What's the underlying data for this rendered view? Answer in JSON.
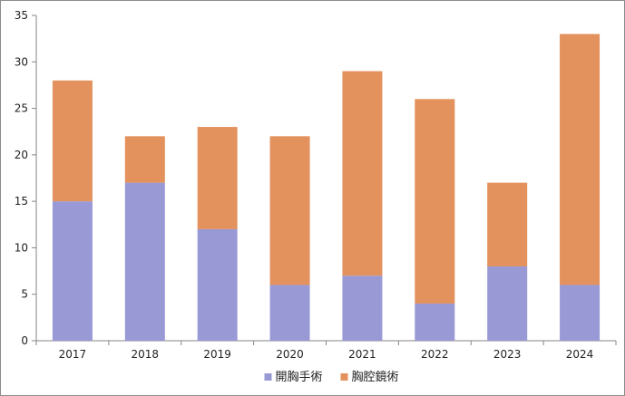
{
  "chart_data": {
    "type": "bar",
    "stacked": true,
    "title": "",
    "xlabel": "",
    "ylabel": "",
    "categories": [
      "2017",
      "2018",
      "2019",
      "2020",
      "2021",
      "2022",
      "2023",
      "2024"
    ],
    "series": [
      {
        "name": "開胸手術",
        "color": "#9999d6",
        "values": [
          15,
          17,
          12,
          6,
          7,
          4,
          8,
          6
        ]
      },
      {
        "name": "胸腔鏡術",
        "color": "#e3915d",
        "values": [
          13,
          5,
          11,
          16,
          22,
          22,
          9,
          27
        ]
      }
    ],
    "ylim": [
      0,
      35
    ],
    "yticks": [
      0,
      5,
      10,
      15,
      20,
      25,
      30,
      35
    ],
    "grid": false,
    "legend_position": "bottom"
  }
}
